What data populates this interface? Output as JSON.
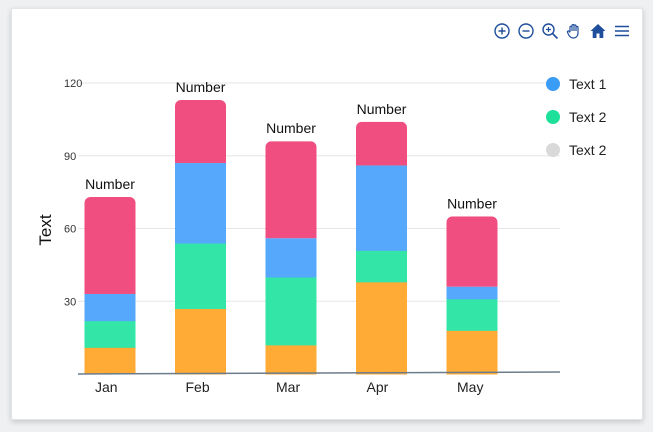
{
  "toolbar": {
    "icons": [
      "zoom-in-icon",
      "zoom-out-icon",
      "zoom-selection-icon",
      "pan-hand-icon",
      "home-icon",
      "menu-icon"
    ],
    "color": "#1f4e9c"
  },
  "legend": [
    {
      "label": "Text 1",
      "color": "#3b9cf5"
    },
    {
      "label": "Text 2",
      "color": "#1ee09a"
    },
    {
      "label": "Text 2",
      "color": "#d9d9d9"
    }
  ],
  "chart_data": {
    "type": "bar",
    "stacked": true,
    "categories": [
      "Jan",
      "Feb",
      "Mar",
      "Apr",
      "May"
    ],
    "series": [
      {
        "color": "#ffab35",
        "values": [
          11,
          27,
          12,
          38,
          18
        ]
      },
      {
        "color": "#33e6a7",
        "values": [
          11,
          27,
          28,
          13,
          13
        ]
      },
      {
        "color": "#56a8fc",
        "values": [
          11,
          33,
          16,
          35,
          5
        ]
      },
      {
        "color": "#f04e80",
        "values": [
          40,
          26,
          40,
          18,
          29
        ]
      }
    ],
    "data_labels": [
      "Number",
      "Number",
      "Number",
      "Number",
      "Number"
    ],
    "ylabel": "Text",
    "xlabel": "",
    "yticks": [
      30,
      60,
      90,
      120
    ],
    "ylim": [
      0,
      120
    ],
    "grid": true
  }
}
